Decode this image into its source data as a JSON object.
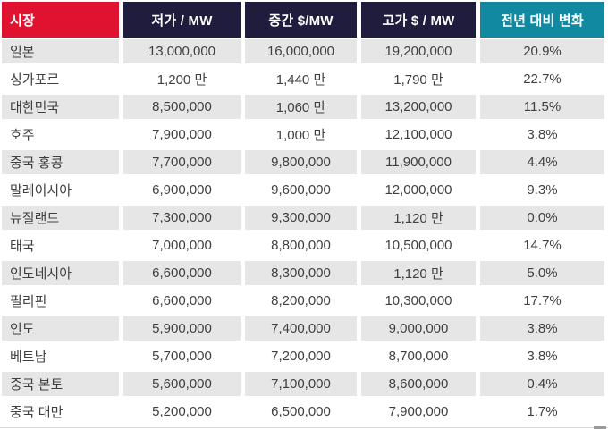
{
  "chart_data": {
    "type": "table",
    "title": "",
    "columns": [
      "시장",
      "저가 / MW",
      "중간 $/MW",
      "고가 $ / MW",
      "전년 대비 변화"
    ],
    "rows": [
      [
        "일본",
        "13,000,000",
        "16,000,000",
        "19,200,000",
        "20.9%"
      ],
      [
        "싱가포르",
        "1,200 만",
        "1,440 만",
        "1,790 만",
        "22.7%"
      ],
      [
        "대한민국",
        "8,500,000",
        "1,060 만",
        "13,200,000",
        "11.5%"
      ],
      [
        "호주",
        "7,900,000",
        "1,000 만",
        "12,100,000",
        "3.8%"
      ],
      [
        "중국 홍콩",
        "7,700,000",
        "9,800,000",
        "11,900,000",
        "4.4%"
      ],
      [
        "말레이시아",
        "6,900,000",
        "9,600,000",
        "12,000,000",
        "9.3%"
      ],
      [
        "뉴질랜드",
        "7,300,000",
        "9,300,000",
        "1,120 만",
        "0.0%"
      ],
      [
        "태국",
        "7,000,000",
        "8,800,000",
        "10,500,000",
        "14.7%"
      ],
      [
        "인도네시아",
        "6,600,000",
        "8,300,000",
        "1,120 만",
        "5.0%"
      ],
      [
        "필리핀",
        "6,600,000",
        "8,200,000",
        "10,300,000",
        "17.7%"
      ],
      [
        "인도",
        "5,900,000",
        "7,400,000",
        "9,000,000",
        "3.8%"
      ],
      [
        "베트남",
        "5,700,000",
        "7,200,000",
        "8,700,000",
        "3.8%"
      ],
      [
        "중국 본토",
        "5,600,000",
        "7,100,000",
        "8,600,000",
        "0.4%"
      ],
      [
        "중국 대만",
        "5,200,000",
        "6,500,000",
        "7,900,000",
        "1.7%"
      ]
    ],
    "layout": {
      "banded_rows": true,
      "first_band": "gray",
      "value_alignment": "center",
      "market_alignment": "left"
    }
  },
  "colors": {
    "header-market-bg": "#DF1230",
    "header-metric-bg": "#201C3E",
    "header-change-bg": "#1189A1",
    "header-text": "#FFFFFF",
    "stripe": "#E6E6E6",
    "body-text": "#3F3F3F"
  }
}
